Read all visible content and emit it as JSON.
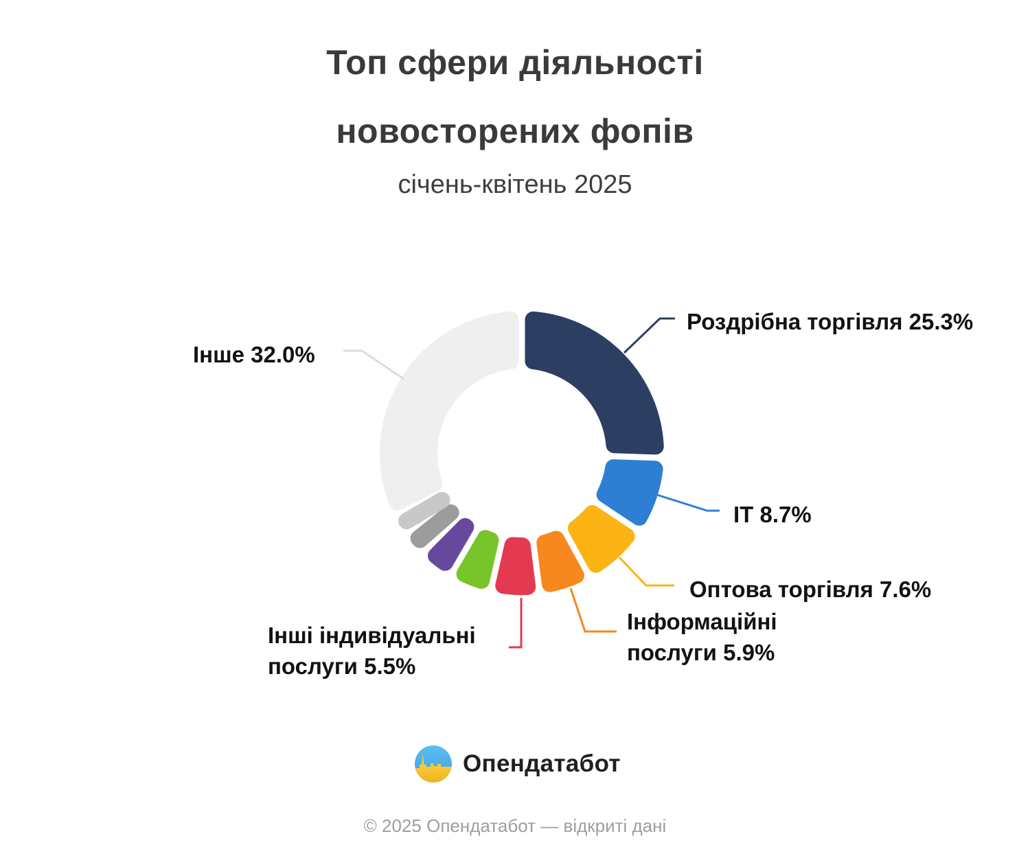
{
  "title": {
    "line1": "Топ сфери діяльності",
    "line2": "новосторених фопів",
    "subtitle": "січень-квітень 2025"
  },
  "chart_data": {
    "type": "donut",
    "title": "Топ сфери діяльності новосторених фопів, січень-квітень 2025",
    "unit": "%",
    "start_angle_deg": 0,
    "direction": "clockwise",
    "legend_position": "callout-labels",
    "segments": [
      {
        "id": "retail",
        "label": "Роздрібна торгівля",
        "value": 25.3,
        "color": "#2D3E63",
        "display": "Роздрібна торгівля 25.3%"
      },
      {
        "id": "it",
        "label": "IT",
        "value": 8.7,
        "color": "#2E7ED4",
        "display": "IT 8.7%"
      },
      {
        "id": "wholesale",
        "label": "Оптова торгівля",
        "value": 7.6,
        "color": "#FBB414",
        "display": "Оптова торгівля 7.6%"
      },
      {
        "id": "info",
        "label": "Інформаційні послуги",
        "value": 5.9,
        "color": "#F6881F",
        "display": "Інформаційні послуги 5.9%"
      },
      {
        "id": "other-individual",
        "label": "Інші індивідуальні послуги",
        "value": 5.5,
        "color": "#E33A52",
        "display": "Інші індивідуальні послуги 5.5%"
      },
      {
        "id": "seg-green",
        "label": "",
        "value": 4.8,
        "color": "#78C42B",
        "display": ""
      },
      {
        "id": "seg-purple",
        "label": "",
        "value": 4.0,
        "color": "#66499D",
        "display": ""
      },
      {
        "id": "seg-gray",
        "label": "",
        "value": 2.9,
        "color": "#9C9C9C",
        "display": ""
      },
      {
        "id": "seg-lightgray",
        "label": "",
        "value": 2.3,
        "color": "#C8C8C8",
        "display": ""
      },
      {
        "id": "other",
        "label": "Інше",
        "value": 32.0,
        "color": "#EFEFEF",
        "line_color": "#DCDCDC",
        "display": "Інше 32.0%"
      }
    ]
  },
  "logo": {
    "name": "Опендатабот"
  },
  "footer": {
    "text": "© 2025 Опендатабот — відкриті дані"
  }
}
